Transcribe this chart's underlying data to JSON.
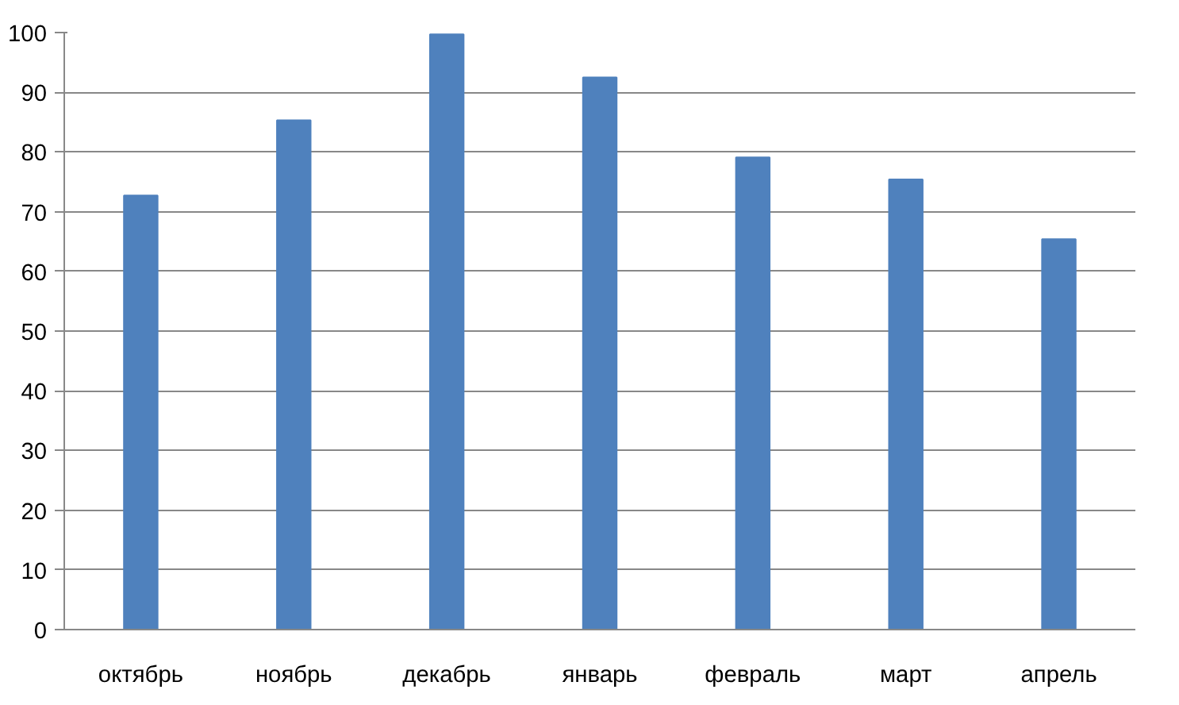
{
  "chart_data": {
    "type": "bar",
    "categories": [
      "октябрь",
      "ноябрь",
      "декабрь",
      "январь",
      "февраль",
      "март",
      "апрель"
    ],
    "values": [
      72.7,
      85.3,
      99.7,
      92.5,
      79.1,
      75.4,
      65.4
    ],
    "color": "#4f81bd",
    "ylim": [
      0,
      100
    ],
    "yticks": [
      0,
      10,
      20,
      30,
      40,
      50,
      60,
      70,
      80,
      90,
      100
    ],
    "grid": "y"
  }
}
